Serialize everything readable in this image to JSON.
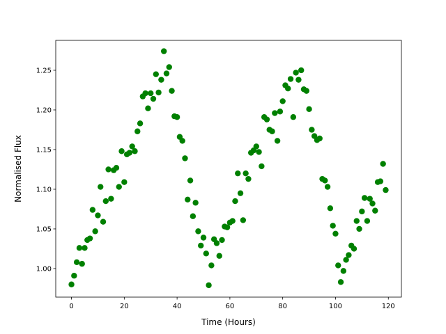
{
  "chart_data": {
    "type": "scatter",
    "color": "#008000",
    "x_label": "Time (Hours)",
    "y_label": "Normalised Flux",
    "xlim": [
      -5.95,
      124.95
    ],
    "ylim": [
      0.964,
      1.2877
    ],
    "xticks": [
      0,
      20,
      40,
      60,
      80,
      100,
      120
    ],
    "yticks": [
      {
        "value": 1.0,
        "label": "1.00"
      },
      1.05,
      {
        "value": 1.1,
        "label": "1.10"
      },
      1.15,
      {
        "value": 1.2,
        "label": "1.20"
      },
      1.25
    ],
    "x": [
      0,
      1,
      2,
      3,
      4,
      5,
      6,
      7,
      8,
      9,
      10,
      11,
      12,
      13,
      14,
      15,
      16,
      17,
      18,
      19,
      20,
      21,
      22,
      23,
      24,
      25,
      26,
      27,
      28,
      29,
      30,
      31,
      32,
      33,
      34,
      35,
      36,
      37,
      38,
      39,
      40,
      41,
      42,
      43,
      44,
      45,
      46,
      47,
      48,
      49,
      50,
      51,
      52,
      53,
      54,
      55,
      56,
      57,
      58,
      59,
      60,
      61,
      62,
      63,
      64,
      65,
      66,
      67,
      68,
      69,
      70,
      71,
      72,
      73,
      74,
      75,
      76,
      77,
      78,
      79,
      80,
      81,
      82,
      83,
      84,
      85,
      86,
      87,
      88,
      89,
      90,
      91,
      92,
      93,
      94,
      95,
      96,
      97,
      98,
      99,
      100,
      101,
      102,
      103,
      104,
      105,
      106,
      107,
      108,
      109,
      110,
      111,
      112,
      113,
      114,
      115,
      116,
      117,
      118,
      119
    ],
    "values": [
      0.98,
      0.991,
      1.008,
      1.026,
      1.006,
      1.026,
      1.036,
      1.038,
      1.074,
      1.047,
      1.067,
      1.103,
      1.059,
      1.085,
      1.125,
      1.088,
      1.124,
      1.127,
      1.103,
      1.148,
      1.109,
      1.144,
      1.146,
      1.154,
      1.148,
      1.173,
      1.183,
      1.217,
      1.221,
      1.202,
      1.221,
      1.214,
      1.245,
      1.222,
      1.238,
      1.274,
      1.246,
      1.254,
      1.224,
      1.192,
      1.191,
      1.166,
      1.161,
      1.139,
      1.087,
      1.111,
      1.066,
      1.083,
      1.047,
      1.029,
      1.039,
      1.019,
      0.979,
      1.004,
      1.037,
      1.032,
      1.016,
      1.036,
      1.053,
      1.052,
      1.058,
      1.06,
      1.085,
      1.12,
      1.095,
      1.061,
      1.12,
      1.113,
      1.146,
      1.149,
      1.154,
      1.147,
      1.129,
      1.191,
      1.188,
      1.175,
      1.173,
      1.196,
      1.161,
      1.198,
      1.211,
      1.231,
      1.227,
      1.239,
      1.191,
      1.247,
      1.238,
      1.25,
      1.226,
      1.224,
      1.201,
      1.175,
      1.167,
      1.162,
      1.164,
      1.113,
      1.111,
      1.103,
      1.076,
      1.054,
      1.044,
      1.004,
      0.983,
      0.997,
      1.011,
      1.017,
      1.029,
      1.025,
      1.06,
      1.05,
      1.072,
      1.089,
      1.06,
      1.088,
      1.082,
      1.073,
      1.109,
      1.11,
      1.132,
      1.099
    ]
  }
}
